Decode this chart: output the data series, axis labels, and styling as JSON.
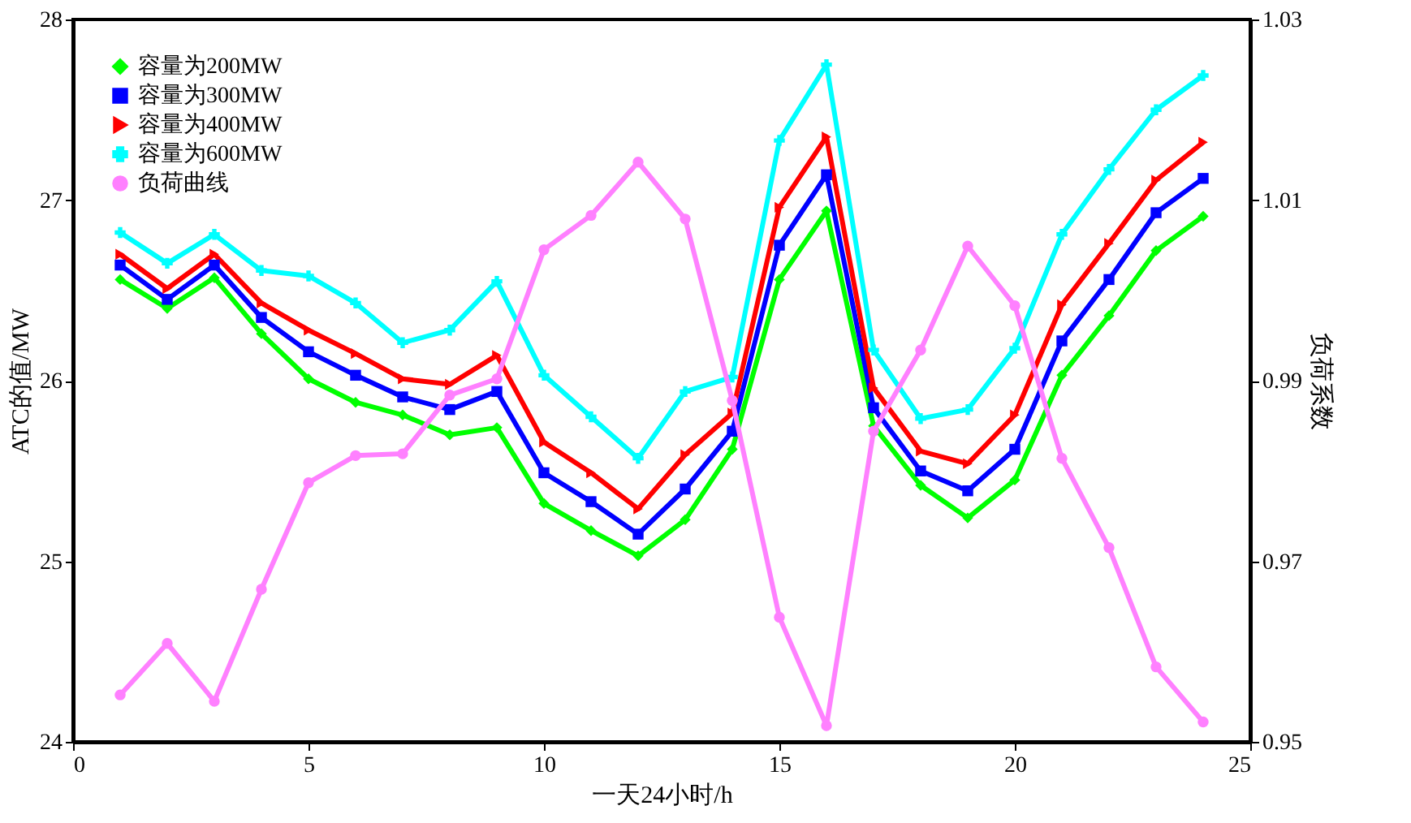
{
  "chart_data": {
    "type": "line",
    "xlabel": "一天24小时/h",
    "ylabel": "ATC的值/MW",
    "y2label": "负荷系数",
    "x": [
      1,
      2,
      3,
      4,
      5,
      6,
      7,
      8,
      9,
      10,
      11,
      12,
      13,
      14,
      15,
      16,
      17,
      18,
      19,
      20,
      21,
      22,
      23,
      24
    ],
    "xlim": [
      0,
      25
    ],
    "xticks": [
      0,
      5,
      10,
      15,
      20,
      25
    ],
    "ylim": [
      24,
      28
    ],
    "yticks": [
      24,
      25,
      26,
      27,
      28
    ],
    "y2lim": [
      0.95,
      1.03
    ],
    "y2ticks": [
      0.95,
      0.97,
      0.99,
      1.01,
      1.03
    ],
    "grid": false,
    "legend": "top left",
    "line_style": "solid",
    "series": [
      {
        "name": "容量为200MW",
        "color": "#00ff00",
        "marker": "diamond",
        "values": [
          26.56,
          26.4,
          26.57,
          26.26,
          26.01,
          25.88,
          25.81,
          25.7,
          25.74,
          25.32,
          25.17,
          25.03,
          25.23,
          25.62,
          26.56,
          26.94,
          25.75,
          25.42,
          25.24,
          25.45,
          26.03,
          26.36,
          26.72,
          26.91
        ]
      },
      {
        "name": "容量为300MW",
        "color": "#0000ff",
        "marker": "square",
        "values": [
          26.64,
          26.45,
          26.64,
          26.35,
          26.16,
          26.03,
          25.91,
          25.84,
          25.94,
          25.49,
          25.33,
          25.15,
          25.4,
          25.72,
          26.75,
          27.14,
          25.85,
          25.5,
          25.39,
          25.62,
          26.22,
          26.56,
          26.93,
          27.12
        ]
      },
      {
        "name": "容量为400MW",
        "color": "#ff0000",
        "marker": "triangle",
        "values": [
          26.7,
          26.51,
          26.7,
          26.43,
          26.28,
          26.15,
          26.01,
          25.98,
          26.14,
          25.66,
          25.49,
          25.29,
          25.59,
          25.82,
          26.96,
          27.35,
          25.96,
          25.61,
          25.54,
          25.81,
          26.42,
          26.76,
          27.11,
          27.32
        ]
      },
      {
        "name": "容量为600MW",
        "color": "#00ffff",
        "marker": "cross",
        "values": [
          26.82,
          26.65,
          26.81,
          26.61,
          26.58,
          26.43,
          26.21,
          26.28,
          26.55,
          26.03,
          25.8,
          25.57,
          25.94,
          26.02,
          27.33,
          27.75,
          26.17,
          25.79,
          25.84,
          26.18,
          26.81,
          27.17,
          27.5,
          27.69
        ]
      },
      {
        "name": "负荷曲线",
        "color": "#ff80ff",
        "marker": "circle",
        "axis": "y2",
        "values": [
          0.9552,
          0.9609,
          0.9545,
          0.9669,
          0.9787,
          0.9817,
          0.9819,
          0.9884,
          0.9902,
          1.0045,
          1.0083,
          1.0142,
          1.0079,
          0.9878,
          0.9638,
          0.9518,
          0.9844,
          0.9934,
          1.0049,
          0.9983,
          0.9814,
          0.9715,
          0.9583,
          0.9522
        ]
      }
    ]
  }
}
